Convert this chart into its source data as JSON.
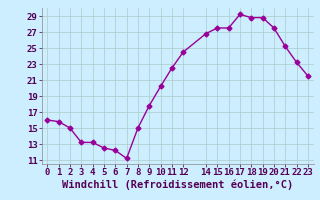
{
  "x": [
    0,
    1,
    2,
    3,
    4,
    5,
    6,
    7,
    8,
    9,
    10,
    11,
    12,
    14,
    15,
    16,
    17,
    18,
    19,
    20,
    21,
    22,
    23
  ],
  "y": [
    16.0,
    15.8,
    15.0,
    13.2,
    13.2,
    12.5,
    12.2,
    11.2,
    15.0,
    17.8,
    20.2,
    22.5,
    24.5,
    26.8,
    27.5,
    27.5,
    29.2,
    28.8,
    28.8,
    27.5,
    25.2,
    23.2,
    21.5
  ],
  "color": "#990099",
  "bg_color": "#cceeff",
  "grid_color": "#aacccc",
  "xlabel": "Windchill (Refroidissement éolien,°C)",
  "xlim": [
    -0.5,
    23.5
  ],
  "ylim": [
    10.5,
    30.0
  ],
  "yticks": [
    11,
    13,
    15,
    17,
    19,
    21,
    23,
    25,
    27,
    29
  ],
  "xticks": [
    0,
    1,
    2,
    3,
    4,
    5,
    6,
    7,
    8,
    9,
    10,
    11,
    12,
    14,
    15,
    16,
    17,
    18,
    19,
    20,
    21,
    22,
    23
  ],
  "marker": "D",
  "markersize": 2.5,
  "linewidth": 1.0,
  "xlabel_fontsize": 7.5,
  "tick_fontsize": 6.5
}
